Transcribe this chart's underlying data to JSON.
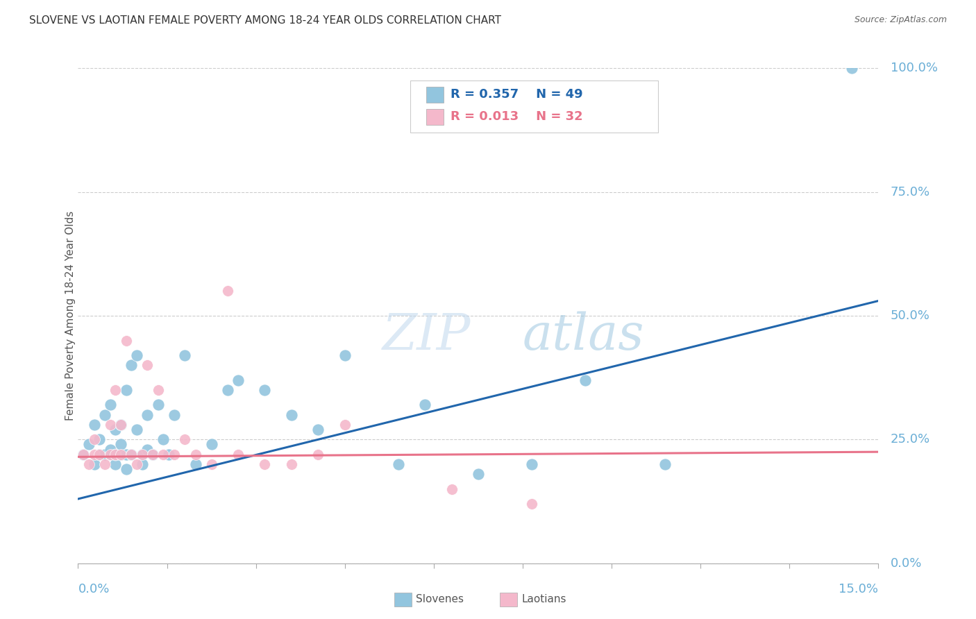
{
  "title": "SLOVENE VS LAOTIAN FEMALE POVERTY AMONG 18-24 YEAR OLDS CORRELATION CHART",
  "source": "Source: ZipAtlas.com",
  "ylabel": "Female Poverty Among 18-24 Year Olds",
  "ytick_labels": [
    "0.0%",
    "25.0%",
    "50.0%",
    "75.0%",
    "100.0%"
  ],
  "ytick_values": [
    0.0,
    0.25,
    0.5,
    0.75,
    1.0
  ],
  "xmin": 0.0,
  "xmax": 0.15,
  "ymin": 0.0,
  "ymax": 1.0,
  "slovene_R": 0.357,
  "slovene_N": 49,
  "laotian_R": 0.013,
  "laotian_N": 32,
  "slovene_color": "#92c5de",
  "laotian_color": "#f4b8cb",
  "slovene_line_color": "#2166ac",
  "laotian_line_color": "#e8738a",
  "legend_slovene_color": "#2166ac",
  "legend_laotian_color": "#e8738a",
  "watermark_zip_color": "#c8dff0",
  "watermark_atlas_color": "#b0cce0",
  "grid_color": "#cccccc",
  "title_color": "#333333",
  "axis_label_color": "#6aaed6",
  "source_color": "#666666",
  "slovene_x": [
    0.001,
    0.002,
    0.003,
    0.003,
    0.004,
    0.004,
    0.005,
    0.005,
    0.006,
    0.006,
    0.006,
    0.007,
    0.007,
    0.007,
    0.008,
    0.008,
    0.008,
    0.009,
    0.009,
    0.009,
    0.01,
    0.01,
    0.011,
    0.011,
    0.012,
    0.012,
    0.013,
    0.013,
    0.014,
    0.015,
    0.016,
    0.017,
    0.018,
    0.02,
    0.022,
    0.025,
    0.028,
    0.03,
    0.035,
    0.04,
    0.045,
    0.05,
    0.06,
    0.065,
    0.075,
    0.085,
    0.095,
    0.11,
    0.145
  ],
  "slovene_y": [
    0.22,
    0.24,
    0.28,
    0.2,
    0.22,
    0.25,
    0.22,
    0.3,
    0.22,
    0.23,
    0.32,
    0.2,
    0.22,
    0.27,
    0.28,
    0.22,
    0.24,
    0.35,
    0.22,
    0.19,
    0.4,
    0.22,
    0.42,
    0.27,
    0.22,
    0.2,
    0.3,
    0.23,
    0.22,
    0.32,
    0.25,
    0.22,
    0.3,
    0.42,
    0.2,
    0.24,
    0.35,
    0.37,
    0.35,
    0.3,
    0.27,
    0.42,
    0.2,
    0.32,
    0.18,
    0.2,
    0.37,
    0.2,
    1.0
  ],
  "laotian_x": [
    0.001,
    0.002,
    0.003,
    0.003,
    0.004,
    0.005,
    0.006,
    0.006,
    0.007,
    0.007,
    0.008,
    0.008,
    0.009,
    0.01,
    0.011,
    0.012,
    0.013,
    0.014,
    0.015,
    0.016,
    0.018,
    0.02,
    0.022,
    0.025,
    0.028,
    0.03,
    0.035,
    0.04,
    0.045,
    0.05,
    0.07,
    0.085
  ],
  "laotian_y": [
    0.22,
    0.2,
    0.22,
    0.25,
    0.22,
    0.2,
    0.22,
    0.28,
    0.22,
    0.35,
    0.22,
    0.28,
    0.45,
    0.22,
    0.2,
    0.22,
    0.4,
    0.22,
    0.35,
    0.22,
    0.22,
    0.25,
    0.22,
    0.2,
    0.55,
    0.22,
    0.2,
    0.2,
    0.22,
    0.28,
    0.15,
    0.12
  ],
  "slovene_trendline_x": [
    0.0,
    0.15
  ],
  "slovene_trendline_y": [
    0.13,
    0.53
  ],
  "laotian_trendline_x": [
    0.0,
    0.15
  ],
  "laotian_trendline_y": [
    0.215,
    0.225
  ]
}
